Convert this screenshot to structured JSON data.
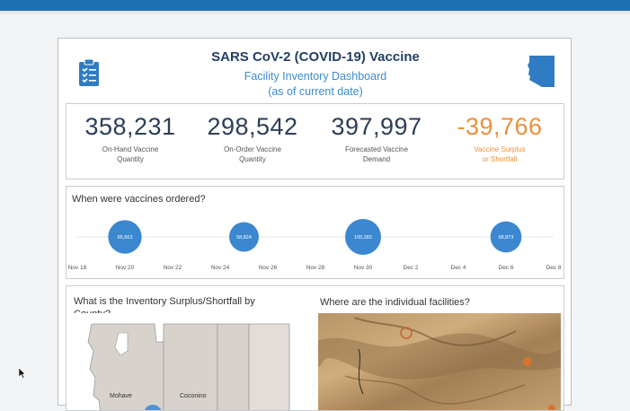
{
  "header": {
    "title": "SARS CoV-2 (COVID-19) Vaccine",
    "subtitle_line1": "Facility Inventory Dashboard",
    "subtitle_line2": "(as of current date)",
    "left_icon": "clipboard-checklist-icon",
    "right_icon": "arizona-state-icon"
  },
  "kpis": [
    {
      "value": "358,231",
      "label_line1": "On-Hand Vaccine",
      "label_line2": "Quantity"
    },
    {
      "value": "298,542",
      "label_line1": "On-Order Vaccine",
      "label_line2": "Quantity"
    },
    {
      "value": "397,997",
      "label_line1": "Forecasted Vaccine",
      "label_line2": "Demand"
    },
    {
      "value": "-39,766",
      "label_line1": "Vaccine Surplus",
      "label_line2": "or Shortfall"
    }
  ],
  "timeline": {
    "title": "When were vaccines ordered?",
    "ticks": [
      "Nov 18",
      "Nov 20",
      "Nov 22",
      "Nov 24",
      "Nov 26",
      "Nov 28",
      "Nov 30",
      "Dec 2",
      "Dec 4",
      "Dec 6",
      "Dec 8"
    ],
    "points": [
      {
        "date": "Nov 20",
        "label": "85,563",
        "value": 85563
      },
      {
        "date": "Nov 25",
        "label": "58,824",
        "value": 58824
      },
      {
        "date": "Nov 30",
        "label": "105,282",
        "value": 105282
      },
      {
        "date": "Dec 6",
        "label": "68,873",
        "value": 68873
      }
    ],
    "color": "#3b87d0"
  },
  "county_map": {
    "title": "What is the Inventory Surplus/Shortfall by County?",
    "counties": [
      "Mohave",
      "Coconino"
    ]
  },
  "facility_map": {
    "title": "Where are the individual facilities?"
  }
}
